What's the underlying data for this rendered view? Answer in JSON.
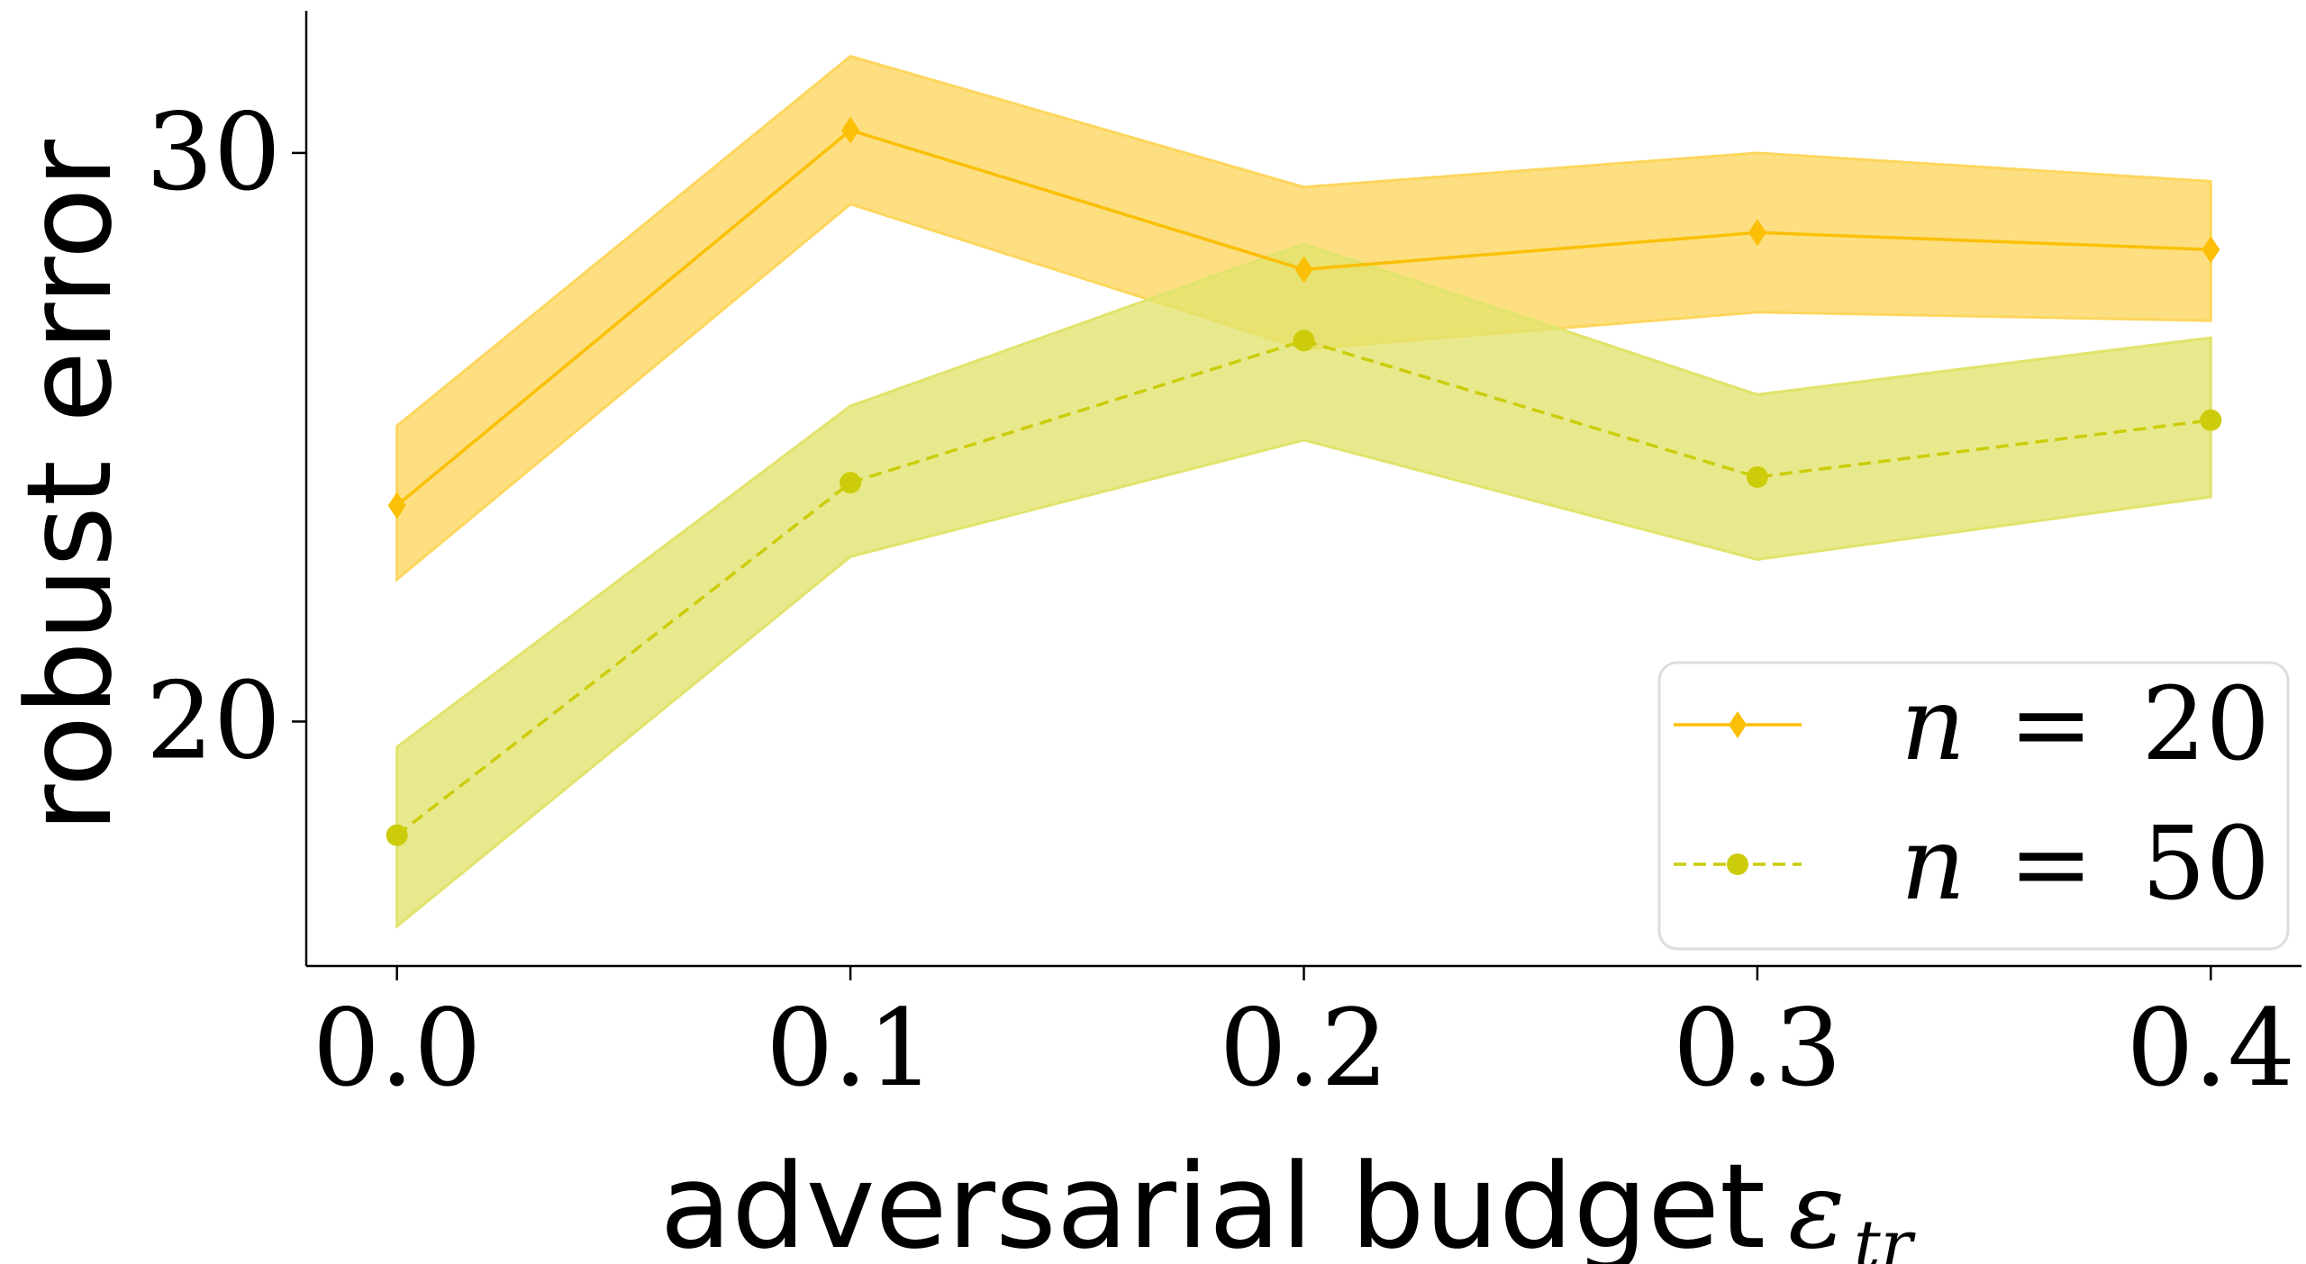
{
  "chart_data": {
    "type": "line",
    "xlabel": "adversarial budget",
    "xlabel_symbol": "ε",
    "xlabel_subscript": "tr",
    "ylabel": "robust error",
    "x": [
      0.0,
      0.1,
      0.2,
      0.3,
      0.4
    ],
    "x_tick_labels": [
      "0.0",
      "0.1",
      "0.2",
      "0.3",
      "0.4"
    ],
    "y_ticks": [
      20,
      30
    ],
    "y_tick_labels": [
      "20",
      "30"
    ],
    "xlim": [
      -0.02,
      0.42
    ],
    "ylim": [
      15.7,
      32.5
    ],
    "grid": false,
    "legend_position": "bottom-right",
    "series": [
      {
        "name": "n = 20",
        "legend_var": "n",
        "legend_eq": "=",
        "legend_val": "20",
        "color": "#fbbf05",
        "band_color": "#fdd65e",
        "marker": "diamond",
        "linestyle": "solid",
        "values": [
          23.8,
          30.4,
          27.95,
          28.6,
          28.3
        ],
        "lower": [
          22.5,
          29.1,
          26.55,
          27.2,
          27.05
        ],
        "upper": [
          25.2,
          31.7,
          29.4,
          30.0,
          29.5
        ]
      },
      {
        "name": "n = 50",
        "legend_var": "n",
        "legend_eq": "=",
        "legend_val": "50",
        "color": "#cccc0b",
        "band_color": "#e1e36c",
        "marker": "circle",
        "linestyle": "dashed",
        "values": [
          18.0,
          24.2,
          26.7,
          24.3,
          25.3
        ],
        "lower": [
          16.4,
          22.9,
          24.95,
          22.85,
          23.95
        ],
        "upper": [
          19.55,
          25.55,
          28.4,
          25.75,
          26.75
        ]
      }
    ]
  }
}
